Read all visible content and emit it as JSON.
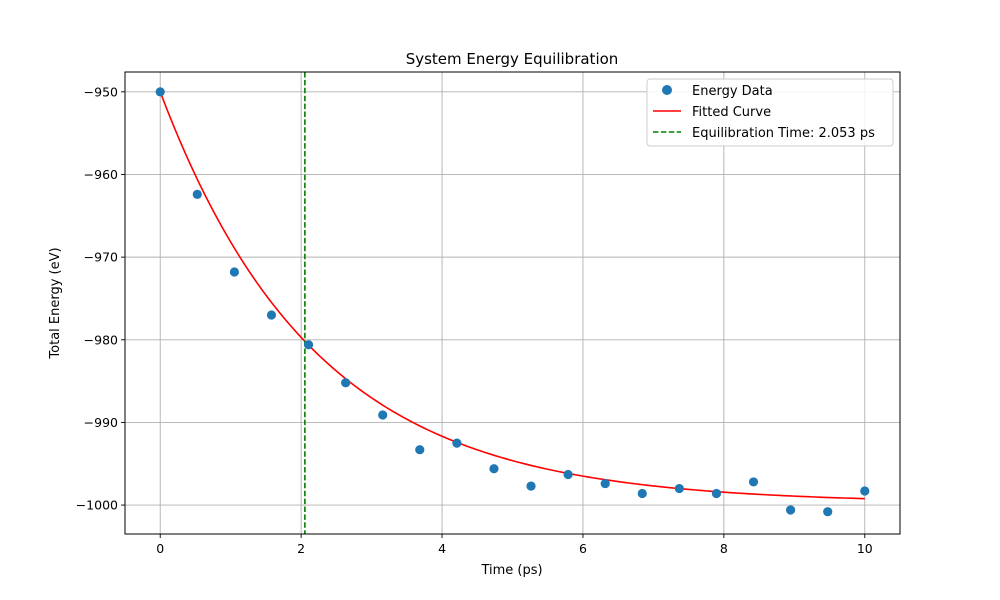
{
  "chart_data": {
    "type": "scatter",
    "title": "System Energy Equilibration",
    "xlabel": "Time (ps)",
    "ylabel": "Total Energy (eV)",
    "xlim": [
      -0.5,
      10.5
    ],
    "ylim": [
      -1003.5,
      -947.6
    ],
    "xticks": [
      0,
      2,
      4,
      6,
      8,
      10
    ],
    "yticks": [
      -950,
      -960,
      -970,
      -980,
      -990,
      -1000
    ],
    "grid": true,
    "legend_position": "upper right",
    "series": [
      {
        "name": "Energy Data",
        "kind": "scatter",
        "color": "#1f77b4",
        "x": [
          0,
          0.526,
          1.053,
          1.579,
          2.105,
          2.632,
          3.158,
          3.684,
          4.211,
          4.737,
          5.263,
          5.789,
          6.316,
          6.842,
          7.368,
          7.895,
          8.421,
          8.947,
          9.474,
          10.0
        ],
        "y": [
          -950.0,
          -962.4,
          -971.8,
          -977.0,
          -980.6,
          -985.2,
          -989.1,
          -993.3,
          -992.5,
          -995.6,
          -997.7,
          -996.3,
          -997.4,
          -998.6,
          -998.0,
          -998.6,
          -997.2,
          -1000.6,
          -1000.8,
          -998.3
        ]
      },
      {
        "name": "Fitted Curve",
        "kind": "line",
        "color": "#ff0000",
        "model": {
          "form": "exponential_decay",
          "y0": -950.0,
          "yinf": -999.75,
          "tau": 2.2
        }
      },
      {
        "name": "Equilibration Time: 2.053 ps",
        "kind": "vline",
        "color": "#008000",
        "x": 2.053
      }
    ]
  }
}
